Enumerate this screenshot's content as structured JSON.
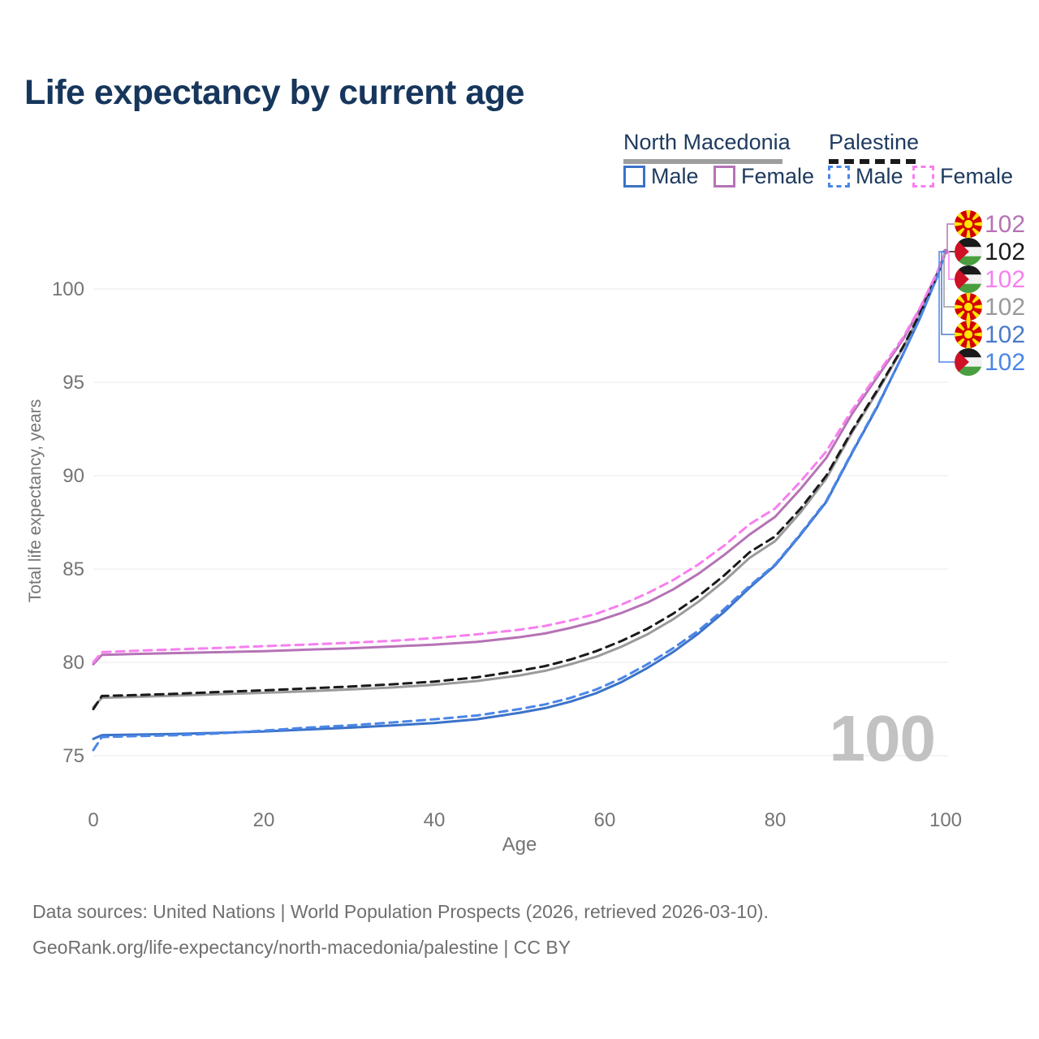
{
  "title": "Life expectancy by current age",
  "legend": {
    "groups": [
      {
        "label": "North Macedonia",
        "line_style": "solid",
        "underline_color": "#9e9e9e",
        "items": [
          {
            "label": "Male",
            "color": "#3b72c8"
          },
          {
            "label": "Female",
            "color": "#b573b5"
          }
        ]
      },
      {
        "label": "Palestine",
        "line_style": "dashed",
        "underline_color": "#1a1a1a",
        "items": [
          {
            "label": "Male",
            "color": "#4b86e8"
          },
          {
            "label": "Female",
            "color": "#f77fef"
          }
        ]
      }
    ]
  },
  "chart_data": {
    "type": "line",
    "title": "Life expectancy by current age",
    "xlabel": "Age",
    "ylabel": "Total life expectancy, years",
    "xlim": [
      0,
      100
    ],
    "ylim": [
      75,
      100
    ],
    "x_ticks": [
      0,
      20,
      40,
      60,
      80,
      100
    ],
    "y_ticks": [
      75,
      80,
      85,
      90,
      95,
      100
    ],
    "grid": "horizontal",
    "legend_position": "top-right",
    "age_counter": "100",
    "ages": [
      0,
      1,
      5,
      10,
      15,
      20,
      25,
      30,
      35,
      40,
      45,
      50,
      53,
      56,
      59,
      62,
      65,
      68,
      71,
      74,
      77,
      80,
      83,
      86,
      89,
      92,
      95,
      97,
      99,
      100
    ],
    "series": [
      {
        "id": "nm-total",
        "name": "North Macedonia Total",
        "country": "north-macedonia",
        "sex": "total",
        "color": "#9a9a9a",
        "dash": false,
        "values": [
          77.6,
          78.1,
          78.15,
          78.22,
          78.3,
          78.37,
          78.45,
          78.55,
          78.65,
          78.8,
          79.0,
          79.3,
          79.55,
          79.9,
          80.3,
          80.85,
          81.5,
          82.3,
          83.25,
          84.35,
          85.6,
          86.5,
          88.05,
          89.85,
          92.3,
          94.5,
          96.85,
          98.65,
          100.75,
          102
        ]
      },
      {
        "id": "nm-male",
        "name": "North Macedonia Male",
        "country": "north-macedonia",
        "sex": "male",
        "color": "#3b72c8",
        "dash": false,
        "values": [
          75.9,
          76.1,
          76.13,
          76.17,
          76.23,
          76.3,
          76.4,
          76.5,
          76.62,
          76.75,
          76.95,
          77.3,
          77.55,
          77.9,
          78.35,
          78.95,
          79.7,
          80.55,
          81.55,
          82.7,
          84.0,
          85.2,
          86.85,
          88.6,
          91.2,
          93.7,
          96.5,
          98.45,
          100.65,
          102
        ]
      },
      {
        "id": "nm-female",
        "name": "North Macedonia Female",
        "country": "north-macedonia",
        "sex": "female",
        "color": "#b573b5",
        "dash": false,
        "values": [
          79.9,
          80.4,
          80.45,
          80.5,
          80.55,
          80.6,
          80.68,
          80.75,
          80.85,
          80.95,
          81.1,
          81.35,
          81.55,
          81.85,
          82.2,
          82.65,
          83.2,
          83.9,
          84.75,
          85.75,
          86.85,
          87.8,
          89.3,
          90.95,
          93.3,
          95.3,
          97.3,
          98.95,
          100.85,
          102
        ]
      },
      {
        "id": "ps-total",
        "name": "Palestine Total",
        "country": "palestine",
        "sex": "total",
        "color": "#1a1a1a",
        "dash": true,
        "values": [
          77.5,
          78.2,
          78.25,
          78.32,
          78.42,
          78.5,
          78.6,
          78.7,
          78.82,
          78.97,
          79.2,
          79.55,
          79.8,
          80.15,
          80.6,
          81.15,
          81.8,
          82.6,
          83.55,
          84.65,
          85.9,
          86.75,
          88.25,
          90.0,
          92.4,
          94.6,
          96.9,
          98.7,
          100.75,
          102
        ]
      },
      {
        "id": "ps-male",
        "name": "Palestine Male",
        "country": "palestine",
        "sex": "male",
        "color": "#4b86e8",
        "dash": true,
        "values": [
          75.3,
          76.0,
          76.05,
          76.1,
          76.2,
          76.35,
          76.5,
          76.62,
          76.78,
          76.95,
          77.15,
          77.5,
          77.75,
          78.1,
          78.55,
          79.15,
          79.9,
          80.75,
          81.7,
          82.85,
          84.1,
          85.25,
          86.9,
          88.65,
          91.25,
          93.75,
          96.5,
          98.45,
          100.65,
          102
        ]
      },
      {
        "id": "ps-female",
        "name": "Palestine Female",
        "country": "palestine",
        "sex": "female",
        "color": "#f77fef",
        "dash": true,
        "values": [
          80.0,
          80.55,
          80.62,
          80.7,
          80.78,
          80.87,
          80.95,
          81.05,
          81.15,
          81.3,
          81.5,
          81.75,
          81.95,
          82.25,
          82.6,
          83.1,
          83.7,
          84.4,
          85.25,
          86.25,
          87.4,
          88.25,
          89.7,
          91.3,
          93.5,
          95.45,
          97.4,
          99.0,
          100.9,
          102
        ]
      }
    ],
    "end_labels": [
      {
        "value": "102",
        "flag": "north-macedonia",
        "color": "#b573b5",
        "series": "North Macedonia Female"
      },
      {
        "value": "102",
        "flag": "palestine",
        "color": "#1a1a1a",
        "series": "Palestine Total"
      },
      {
        "value": "102",
        "flag": "palestine",
        "color": "#f77fef",
        "series": "Palestine Female"
      },
      {
        "value": "102",
        "flag": "north-macedonia",
        "color": "#9a9a9a",
        "series": "North Macedonia Total"
      },
      {
        "value": "102",
        "flag": "north-macedonia",
        "color": "#4b7bc9",
        "series": "North Macedonia Male"
      },
      {
        "value": "102",
        "flag": "palestine",
        "color": "#4b86e8",
        "series": "Palestine Male"
      }
    ]
  },
  "footer": {
    "line1": "Data sources: United Nations | World Population Prospects (2026, retrieved 2026-03-10).",
    "line2": "GeoRank.org/life-expectancy/north-macedonia/palestine | CC BY"
  }
}
